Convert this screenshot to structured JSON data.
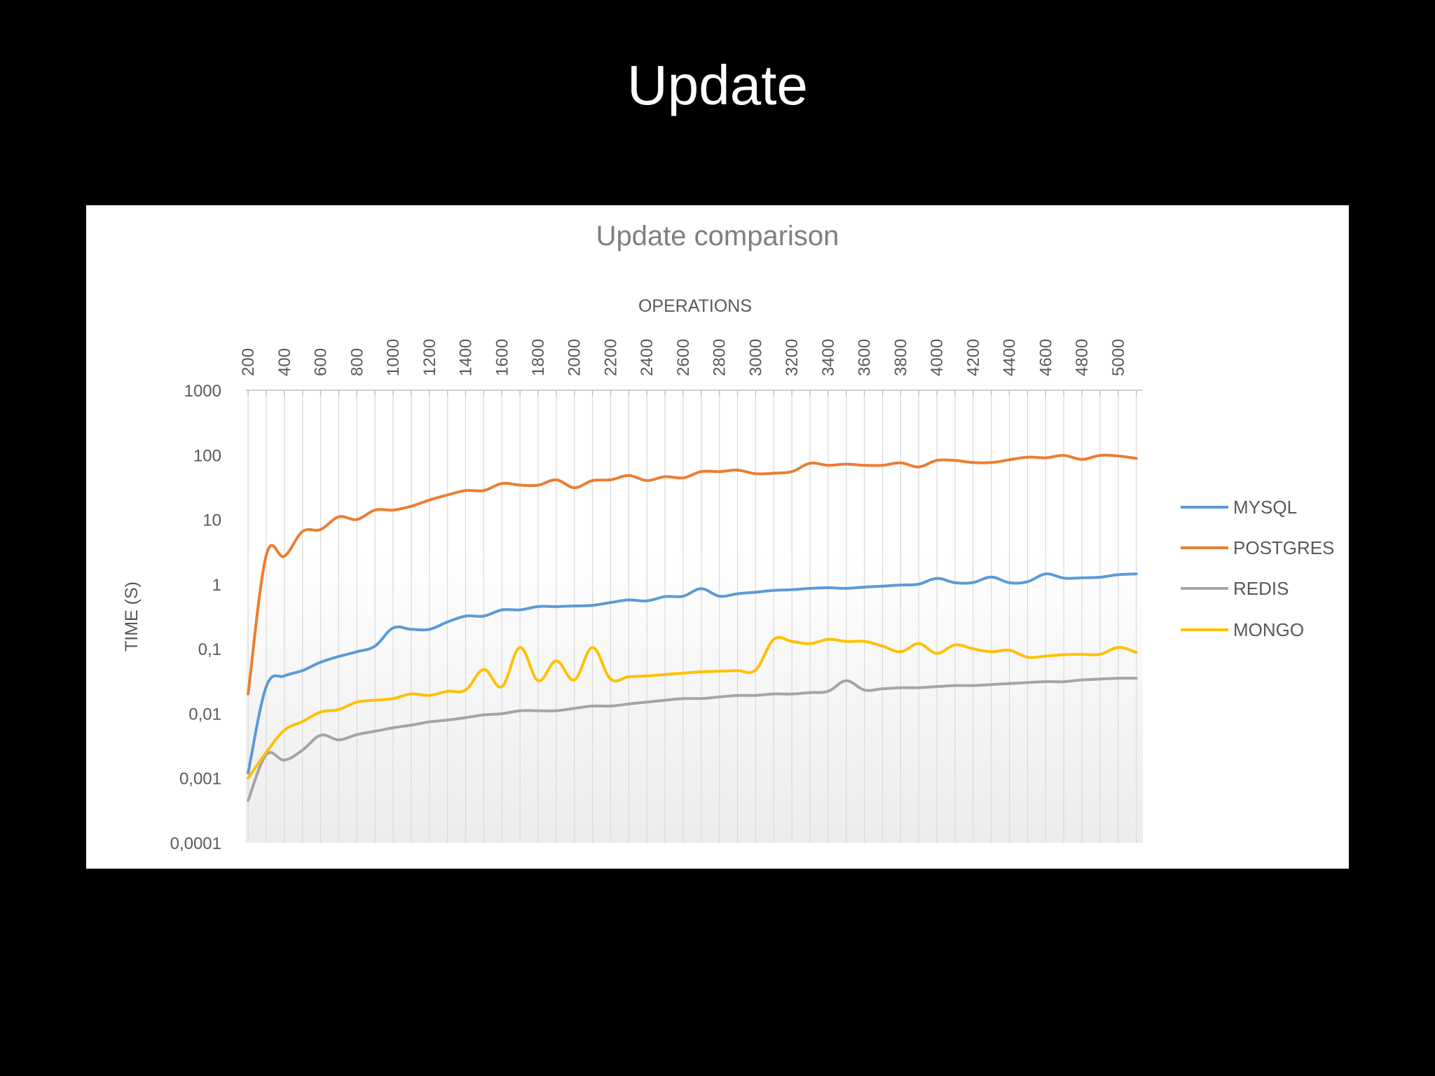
{
  "slide": {
    "title": "Update"
  },
  "chart_data": {
    "type": "line",
    "title": "Update comparison",
    "xlabel": "OPERATIONS",
    "ylabel": "TIME (S)",
    "x_axis_position": "top",
    "y_scale": "log",
    "ylim": [
      0.0001,
      1000
    ],
    "y_tick_labels": [
      "1000",
      "100",
      "10",
      "1",
      "0,1",
      "0,01",
      "0,001",
      "0,0001"
    ],
    "x_tick_labels": [
      "200",
      "400",
      "600",
      "800",
      "1000",
      "1200",
      "1400",
      "1600",
      "1800",
      "2000",
      "2200",
      "2400",
      "2600",
      "2800",
      "3000",
      "3200",
      "3400",
      "3600",
      "3800",
      "4000",
      "4200",
      "4400",
      "4600",
      "4800",
      "5000"
    ],
    "x": [
      200,
      300,
      400,
      500,
      600,
      700,
      800,
      900,
      1000,
      1100,
      1200,
      1300,
      1400,
      1500,
      1600,
      1700,
      1800,
      1900,
      2000,
      2100,
      2200,
      2300,
      2400,
      2500,
      2600,
      2700,
      2800,
      2900,
      3000,
      3100,
      3200,
      3300,
      3400,
      3500,
      3600,
      3700,
      3800,
      3900,
      4000,
      4100,
      4200,
      4300,
      4400,
      4500,
      4600,
      4700,
      4800,
      4900,
      5000,
      5100
    ],
    "grid": "vertical",
    "legend_position": "right",
    "series": [
      {
        "name": "MYSQL",
        "color": "#5b9bd5",
        "values": [
          0.0012,
          0.026,
          0.038,
          0.046,
          0.062,
          0.076,
          0.09,
          0.11,
          0.21,
          0.2,
          0.2,
          0.26,
          0.32,
          0.32,
          0.4,
          0.4,
          0.45,
          0.45,
          0.46,
          0.47,
          0.52,
          0.57,
          0.55,
          0.64,
          0.65,
          0.85,
          0.65,
          0.71,
          0.75,
          0.8,
          0.82,
          0.86,
          0.88,
          0.86,
          0.9,
          0.93,
          0.97,
          1.0,
          1.23,
          1.05,
          1.06,
          1.29,
          1.05,
          1.09,
          1.44,
          1.24,
          1.25,
          1.28,
          1.4,
          1.44
        ]
      },
      {
        "name": "POSTGRES",
        "color": "#ed7d31",
        "values": [
          0.02,
          2.8,
          2.7,
          6.5,
          7.0,
          11.0,
          10.0,
          14.0,
          14.0,
          16.0,
          20.0,
          24.0,
          28.0,
          28.0,
          36.0,
          34.0,
          34.0,
          41.0,
          31.0,
          40.0,
          41.0,
          48.0,
          40.0,
          46.0,
          44.0,
          55.0,
          55.0,
          58.0,
          51.0,
          52.0,
          55.0,
          74.0,
          69.0,
          72.0,
          69.0,
          69.0,
          75.0,
          65.0,
          82.0,
          82.0,
          76.0,
          76.0,
          84.0,
          92.0,
          90.0,
          98.0,
          85.0,
          98.0,
          96.0,
          88.0
        ]
      },
      {
        "name": "REDIS",
        "color": "#a5a5a5",
        "values": [
          0.00045,
          0.0023,
          0.0019,
          0.0027,
          0.0046,
          0.0039,
          0.0047,
          0.0053,
          0.006,
          0.0066,
          0.0074,
          0.0079,
          0.0086,
          0.0095,
          0.0099,
          0.011,
          0.011,
          0.011,
          0.012,
          0.013,
          0.013,
          0.014,
          0.015,
          0.016,
          0.017,
          0.017,
          0.018,
          0.019,
          0.019,
          0.02,
          0.02,
          0.021,
          0.022,
          0.032,
          0.023,
          0.024,
          0.025,
          0.025,
          0.026,
          0.027,
          0.027,
          0.028,
          0.029,
          0.03,
          0.031,
          0.031,
          0.033,
          0.034,
          0.035,
          0.035
        ]
      },
      {
        "name": "MONGO",
        "color": "#ffc000",
        "values": [
          0.001,
          0.0025,
          0.0055,
          0.0075,
          0.0105,
          0.0115,
          0.015,
          0.016,
          0.017,
          0.02,
          0.019,
          0.022,
          0.023,
          0.048,
          0.026,
          0.105,
          0.032,
          0.065,
          0.033,
          0.105,
          0.034,
          0.037,
          0.038,
          0.04,
          0.042,
          0.044,
          0.045,
          0.046,
          0.047,
          0.14,
          0.13,
          0.12,
          0.14,
          0.13,
          0.13,
          0.11,
          0.09,
          0.12,
          0.085,
          0.115,
          0.1,
          0.09,
          0.095,
          0.074,
          0.077,
          0.081,
          0.082,
          0.082,
          0.105,
          0.088
        ]
      }
    ]
  }
}
